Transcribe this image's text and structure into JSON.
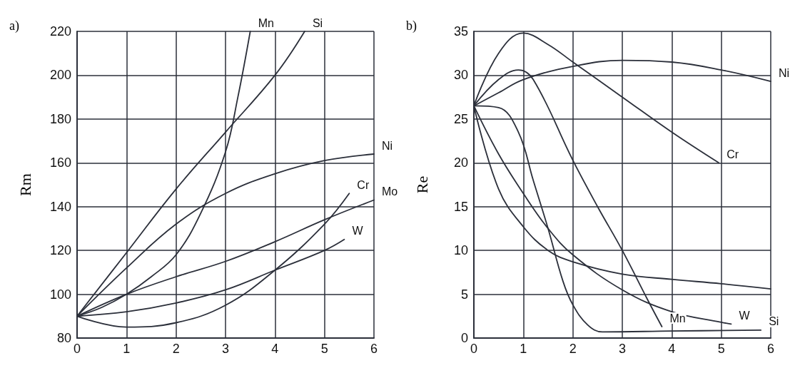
{
  "chart_data": [
    {
      "type": "line",
      "title": "a)",
      "ylabel": "Rm",
      "xlim": [
        0,
        6
      ],
      "xticks": [
        0,
        1,
        2,
        3,
        4,
        5,
        6
      ],
      "ylim": [
        80,
        220
      ],
      "yticks": [
        80,
        100,
        120,
        140,
        160,
        180,
        200,
        220
      ],
      "grid": true,
      "marker": "none",
      "line_style": "solid",
      "series": [
        {
          "name": "Mn",
          "color": "#2b2f3a",
          "x": [
            0,
            0.5,
            1,
            1.5,
            2,
            2.5,
            3,
            3.25,
            3.5
          ],
          "values": [
            90,
            94,
            100,
            108,
            118,
            137,
            165,
            190,
            220
          ]
        },
        {
          "name": "Si",
          "color": "#2b2f3a",
          "x": [
            0,
            1,
            2,
            3,
            4,
            4.6
          ],
          "values": [
            90,
            119,
            148,
            174,
            200,
            220
          ]
        },
        {
          "name": "Ni",
          "color": "#2b2f3a",
          "x": [
            0,
            1,
            2,
            3,
            4,
            5,
            6
          ],
          "values": [
            90,
            112,
            132,
            146,
            155,
            161,
            164
          ]
        },
        {
          "name": "Cr",
          "color": "#2b2f3a",
          "x": [
            0,
            1,
            2,
            3,
            4,
            5,
            5.5
          ],
          "values": [
            90,
            85,
            87,
            95,
            111,
            132,
            146
          ]
        },
        {
          "name": "Mo",
          "color": "#2b2f3a",
          "x": [
            0,
            1,
            2,
            3,
            4,
            5,
            6
          ],
          "values": [
            90,
            100,
            108,
            115,
            124,
            134,
            143
          ]
        },
        {
          "name": "W",
          "color": "#2b2f3a",
          "x": [
            0,
            1,
            2,
            3,
            4,
            5,
            5.4
          ],
          "values": [
            90,
            92,
            96,
            102,
            111,
            120,
            125
          ]
        }
      ]
    },
    {
      "type": "line",
      "title": "b)",
      "ylabel": "Re",
      "xlim": [
        0,
        6
      ],
      "xticks": [
        0,
        1,
        2,
        3,
        4,
        5,
        6
      ],
      "ylim": [
        0,
        35
      ],
      "yticks": [
        0,
        5,
        10,
        15,
        20,
        25,
        30,
        35
      ],
      "grid": true,
      "marker": "none",
      "line_style": "solid",
      "series": [
        {
          "name": "Ni",
          "color": "#2b2f3a",
          "x": [
            0,
            0.5,
            1,
            2,
            3,
            4,
            5,
            6
          ],
          "values": [
            26.5,
            28,
            29.5,
            31,
            31.7,
            31.5,
            30.6,
            29.3
          ]
        },
        {
          "name": "Cr",
          "color": "#2b2f3a",
          "x": [
            0,
            0.5,
            1,
            1.5,
            2,
            3,
            4,
            4.95
          ],
          "values": [
            26.5,
            32.5,
            34.8,
            33.5,
            31.5,
            27.5,
            23.5,
            20
          ]
        },
        {
          "name": "Mn",
          "color": "#2b2f3a",
          "x": [
            0,
            0.5,
            0.9,
            1.2,
            2,
            2.5,
            3,
            3.5,
            3.8
          ],
          "values": [
            26.5,
            29.5,
            30.6,
            29.5,
            20.3,
            15,
            10,
            4.5,
            1.3
          ]
        },
        {
          "name": "Si",
          "color": "#2b2f3a",
          "x": [
            0,
            0.5,
            0.9,
            1.2,
            1.5,
            1.8,
            2,
            2.3,
            2.6,
            4,
            5.8
          ],
          "values": [
            26.5,
            26.3,
            23.5,
            18,
            12.5,
            6.5,
            3.8,
            1.5,
            0.7,
            0.8,
            0.9
          ]
        },
        {
          "name": "W",
          "color": "#2b2f3a",
          "x": [
            0,
            0.5,
            1,
            1.5,
            2,
            3,
            4,
            5,
            5.2
          ],
          "values": [
            26.5,
            21,
            16.5,
            12.5,
            9.5,
            5.5,
            3,
            1.8,
            1.6
          ]
        },
        {
          "color": "#2b2f3a",
          "x": [
            0,
            0.5,
            1,
            1.5,
            2,
            3,
            4,
            5,
            6
          ],
          "values": [
            26.5,
            17,
            12.7,
            10,
            8.7,
            7.3,
            6.7,
            6.2,
            5.6
          ]
        }
      ]
    }
  ]
}
